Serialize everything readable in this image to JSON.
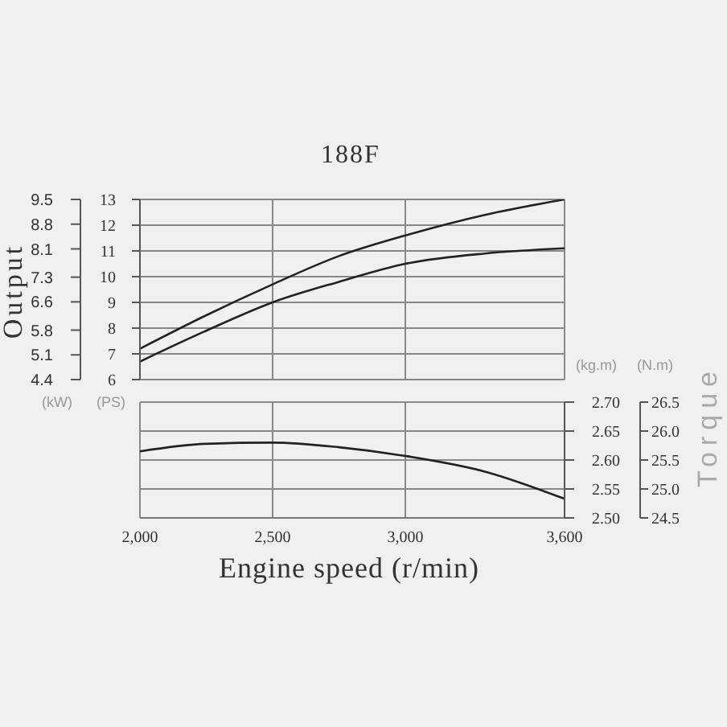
{
  "chart_data": [
    {
      "type": "line",
      "title": "188F",
      "ylabel": "Output",
      "annotations": [
        "(kW)",
        "(PS)"
      ],
      "x": [
        2000,
        2250,
        2500,
        2750,
        3000,
        3300,
        3600
      ],
      "xlim": [
        2000,
        3600
      ],
      "xticks": [
        2000,
        2500,
        3000,
        3600
      ],
      "ylim": [
        4.4,
        9.5
      ],
      "yticks": [
        4.4,
        5.1,
        5.8,
        6.6,
        7.3,
        8.1,
        8.8,
        9.5
      ],
      "y2lim": [
        6,
        13
      ],
      "y2ticks": [
        6,
        7,
        8,
        9,
        10,
        11,
        12,
        13
      ],
      "series": [
        {
          "color": "#222222",
          "axis": "y2",
          "values": [
            7.2,
            8.5,
            9.7,
            10.8,
            11.6,
            12.4,
            13.0
          ]
        },
        {
          "color": "#222222",
          "axis": "y2",
          "values": [
            6.7,
            7.9,
            9.0,
            9.8,
            10.5,
            10.9,
            11.1
          ]
        }
      ],
      "grid": true,
      "tick_labels": "y"
    },
    {
      "type": "line",
      "xlabel": "Engine speed (r/min)",
      "ylabel": "Torque",
      "annotations": [
        "(kg.m)",
        "(N.m)"
      ],
      "x": [
        2000,
        2250,
        2500,
        2750,
        3000,
        3300,
        3600
      ],
      "xlim": [
        2000,
        3600
      ],
      "xticks": [
        {
          "value": 2000,
          "label": "2,000"
        },
        {
          "value": 2500,
          "label": "2,500"
        },
        {
          "value": 3000,
          "label": "3,000"
        },
        {
          "value": 3600,
          "label": "3,600"
        }
      ],
      "ylim": [
        24.5,
        26.5
      ],
      "yticks": [
        24.5,
        {
          "value": 25,
          "label": "25.0"
        },
        25.5,
        {
          "value": 26,
          "label": "26.0"
        },
        26.5
      ],
      "y2lim": [
        2.5,
        2.7
      ],
      "y2ticks": [
        {
          "value": 2.5,
          "label": "2.50"
        },
        2.55,
        {
          "value": 2.6,
          "label": "2.60"
        },
        2.65,
        {
          "value": 2.7,
          "label": "2.70"
        }
      ],
      "series": [
        {
          "color": "#222222",
          "axis": "y2",
          "values": [
            2.615,
            2.628,
            2.63,
            2.622,
            2.607,
            2.58,
            2.533
          ]
        }
      ],
      "grid": true
    }
  ]
}
